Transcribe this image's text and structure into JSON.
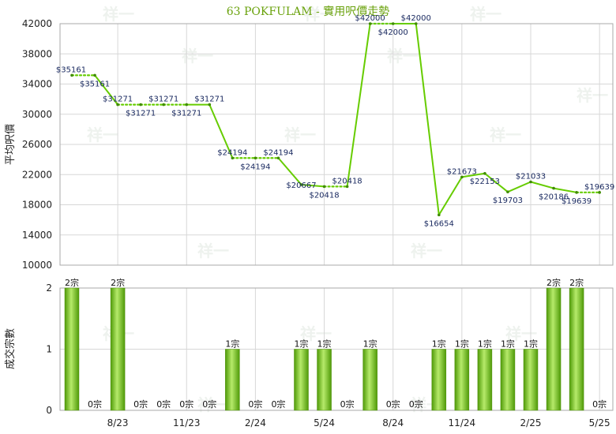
{
  "chart_data": [
    {
      "type": "line",
      "title": "63 POKFULAM - 實用呎價走勢",
      "ylabel": "平均呎價",
      "ylim": [
        10000,
        42000
      ],
      "yticks": [
        10000,
        14000,
        18000,
        22000,
        26000,
        30000,
        34000,
        38000,
        42000
      ],
      "x_tick_labels": [
        "8/23",
        "11/23",
        "2/24",
        "5/24",
        "8/24",
        "11/24",
        "2/25",
        "5/25"
      ],
      "months": [
        "6/23",
        "7/23",
        "8/23",
        "9/23",
        "10/23",
        "11/23",
        "12/23",
        "1/24",
        "2/24",
        "3/24",
        "4/24",
        "5/24",
        "6/24",
        "7/24",
        "8/24",
        "9/24",
        "10/24",
        "11/24",
        "12/24",
        "1/25",
        "2/25",
        "3/25",
        "4/25",
        "5/25"
      ],
      "values": [
        35161,
        35161,
        31271,
        31271,
        31271,
        31271,
        31271,
        24194,
        24194,
        24194,
        20667,
        20418,
        20418,
        42000,
        42000,
        42000,
        16654,
        21673,
        22153,
        19703,
        21033,
        20186,
        19639,
        19639
      ],
      "interpolated": [
        false,
        true,
        false,
        true,
        true,
        true,
        false,
        false,
        true,
        true,
        false,
        false,
        true,
        false,
        true,
        false,
        false,
        false,
        false,
        false,
        false,
        false,
        false,
        true
      ],
      "labels": [
        "$35161",
        "$35161",
        "$31271",
        "$31271",
        "$31271",
        "$31271",
        "$31271",
        "$24194",
        "$24194",
        "$24194",
        "$20667",
        "$20418",
        "$20418",
        "$42000",
        "$42000",
        "$42000",
        "$16654",
        "$21673",
        "$22153",
        "$19703",
        "$21033",
        "$20186",
        "$19639",
        "$19639"
      ],
      "line_color": "#66cc00",
      "grid": true
    },
    {
      "type": "bar",
      "ylabel": "成交宗數",
      "ylim": [
        0,
        2
      ],
      "yticks": [
        0,
        1,
        2
      ],
      "x_tick_labels": [
        "8/23",
        "11/23",
        "2/24",
        "5/24",
        "8/24",
        "11/24",
        "2/25",
        "5/25"
      ],
      "months": [
        "6/23",
        "7/23",
        "8/23",
        "9/23",
        "10/23",
        "11/23",
        "12/23",
        "1/24",
        "2/24",
        "3/24",
        "4/24",
        "5/24",
        "6/24",
        "7/24",
        "8/24",
        "9/24",
        "10/24",
        "11/24",
        "12/24",
        "1/25",
        "2/25",
        "3/25",
        "4/25",
        "5/25"
      ],
      "values": [
        2,
        0,
        2,
        0,
        0,
        0,
        0,
        1,
        0,
        0,
        1,
        1,
        0,
        1,
        0,
        0,
        1,
        1,
        1,
        1,
        1,
        2,
        2,
        0
      ],
      "labels": [
        "2宗",
        "0宗",
        "2宗",
        "0宗",
        "0宗",
        "0宗",
        "0宗",
        "1宗",
        "0宗",
        "0宗",
        "1宗",
        "1宗",
        "0宗",
        "1宗",
        "0宗",
        "0宗",
        "1宗",
        "1宗",
        "1宗",
        "1宗",
        "1宗",
        "2宗",
        "2宗",
        "0宗"
      ],
      "bar_color": "#66bb11",
      "grid": true
    }
  ],
  "watermark": "祥一"
}
